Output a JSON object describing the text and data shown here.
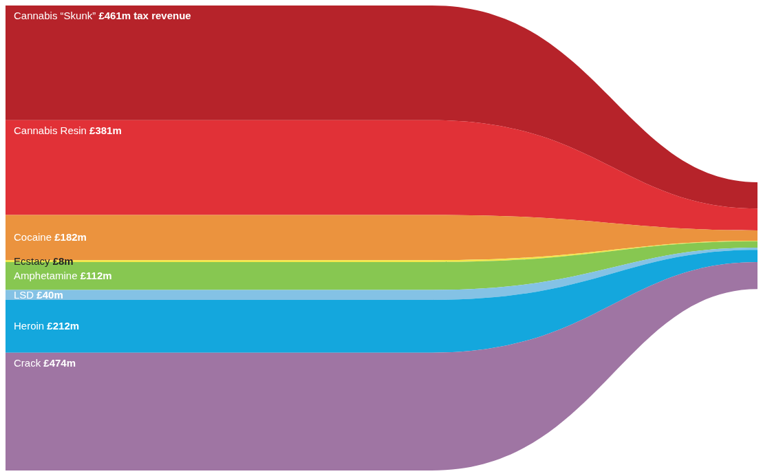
{
  "chart_data": {
    "type": "other",
    "categories": [
      "Cannabis “Skunk”",
      "Cannabis Resin",
      "Cocaine",
      "Ecstacy",
      "Amphetamine",
      "LSD",
      "Heroin",
      "Crack"
    ],
    "values": [
      461,
      381,
      182,
      8,
      112,
      40,
      212,
      474
    ],
    "value_labels": [
      "£461m tax revenue",
      "£381m",
      "£182m",
      "£8m",
      "£112m",
      "£40m",
      "£212m",
      "£474m"
    ],
    "colors": [
      "#b01018",
      "#de1f26",
      "#e98a2e",
      "#f2e43b",
      "#7dc242",
      "#79bde3",
      "#009fda",
      "#97699b"
    ]
  }
}
